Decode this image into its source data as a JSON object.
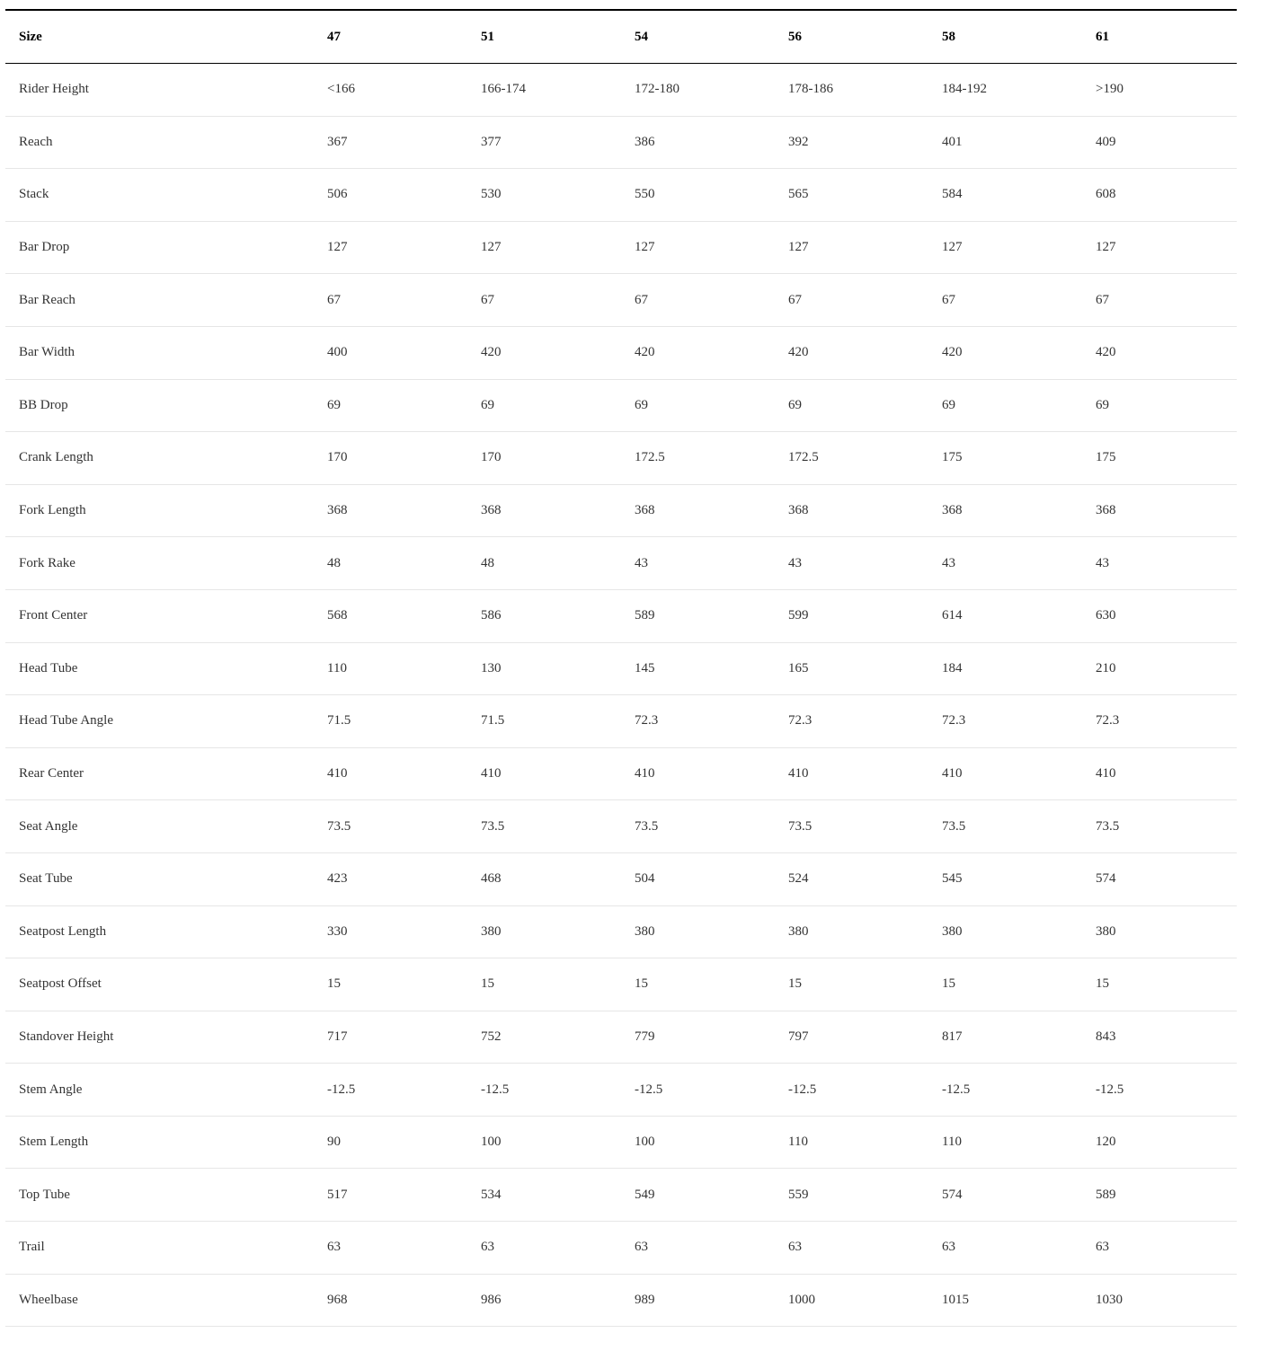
{
  "table": {
    "header": [
      "Size",
      "47",
      "51",
      "54",
      "56",
      "58",
      "61"
    ],
    "rows": [
      [
        "Rider Height",
        "<166",
        "166-174",
        "172-180",
        "178-186",
        "184-192",
        ">190"
      ],
      [
        "Reach",
        "367",
        "377",
        "386",
        "392",
        "401",
        "409"
      ],
      [
        "Stack",
        "506",
        "530",
        "550",
        "565",
        "584",
        "608"
      ],
      [
        "Bar Drop",
        "127",
        "127",
        "127",
        "127",
        "127",
        "127"
      ],
      [
        "Bar Reach",
        "67",
        "67",
        "67",
        "67",
        "67",
        "67"
      ],
      [
        "Bar Width",
        "400",
        "420",
        "420",
        "420",
        "420",
        "420"
      ],
      [
        "BB Drop",
        "69",
        "69",
        "69",
        "69",
        "69",
        "69"
      ],
      [
        "Crank Length",
        "170",
        "170",
        "172.5",
        "172.5",
        "175",
        "175"
      ],
      [
        "Fork Length",
        "368",
        "368",
        "368",
        "368",
        "368",
        "368"
      ],
      [
        "Fork Rake",
        "48",
        "48",
        "43",
        "43",
        "43",
        "43"
      ],
      [
        "Front Center",
        "568",
        "586",
        "589",
        "599",
        "614",
        "630"
      ],
      [
        "Head Tube",
        "110",
        "130",
        "145",
        "165",
        "184",
        "210"
      ],
      [
        "Head Tube Angle",
        "71.5",
        "71.5",
        "72.3",
        "72.3",
        "72.3",
        "72.3"
      ],
      [
        "Rear Center",
        "410",
        "410",
        "410",
        "410",
        "410",
        "410"
      ],
      [
        "Seat Angle",
        "73.5",
        "73.5",
        "73.5",
        "73.5",
        "73.5",
        "73.5"
      ],
      [
        "Seat Tube",
        "423",
        "468",
        "504",
        "524",
        "545",
        "574"
      ],
      [
        "Seatpost Length",
        "330",
        "380",
        "380",
        "380",
        "380",
        "380"
      ],
      [
        "Seatpost Offset",
        "15",
        "15",
        "15",
        "15",
        "15",
        "15"
      ],
      [
        "Standover Height",
        "717",
        "752",
        "779",
        "797",
        "817",
        "843"
      ],
      [
        "Stem Angle",
        "-12.5",
        "-12.5",
        "-12.5",
        "-12.5",
        "-12.5",
        "-12.5"
      ],
      [
        "Stem Length",
        "90",
        "100",
        "100",
        "110",
        "110",
        "120"
      ],
      [
        "Top Tube",
        "517",
        "534",
        "549",
        "559",
        "574",
        "589"
      ],
      [
        "Trail",
        "63",
        "63",
        "63",
        "63",
        "63",
        "63"
      ],
      [
        "Wheelbase",
        "968",
        "986",
        "989",
        "1000",
        "1015",
        "1030"
      ]
    ]
  }
}
